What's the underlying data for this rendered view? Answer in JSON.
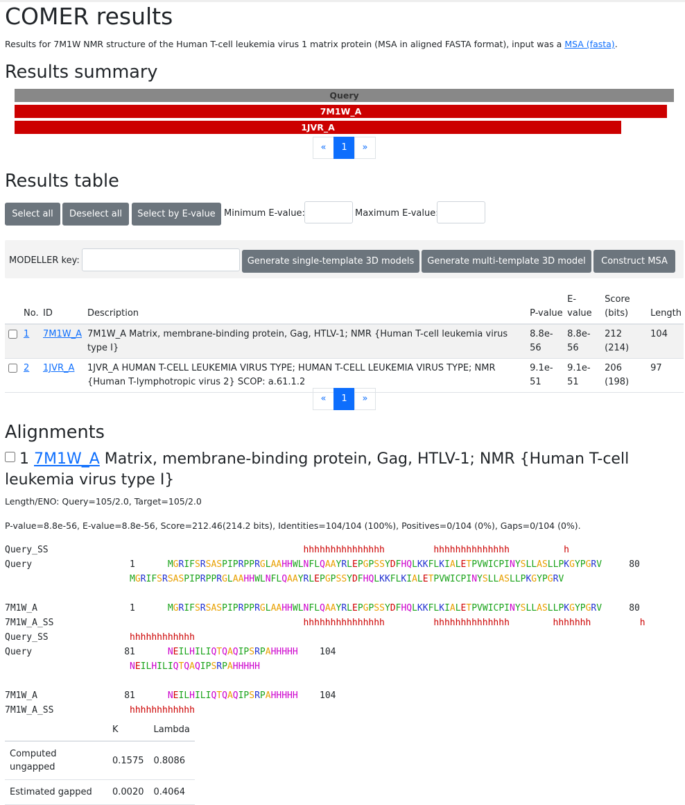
{
  "page_title": "COMER results",
  "intro": {
    "text": "Results for 7M1W NMR structure of the Human T-cell leukemia virus 1 matrix protein (MSA in aligned FASTA format), input was a ",
    "link": "MSA (fasta)",
    "suffix": "."
  },
  "summary": {
    "heading": "Results summary",
    "query_label": "Query",
    "hits": [
      {
        "label": "7M1W_A",
        "coverage": 0.99
      },
      {
        "label": "1JVR_A",
        "coverage": 0.92
      }
    ],
    "pager": {
      "prev": "«",
      "page": "1",
      "next": "»"
    }
  },
  "results_table": {
    "heading": "Results table",
    "select_all": "Select all",
    "deselect_all": "Deselect all",
    "select_by_evalue": "Select by E-value",
    "min_evalue_label": "Minimum E-value:",
    "max_evalue_label": "Maximum E-value:",
    "min_evalue_value": "",
    "max_evalue_value": "",
    "modeller_key_label": "MODELLER key:",
    "modeller_key_value": "",
    "gen_single": "Generate single-template 3D models",
    "gen_multi": "Generate multi-template 3D model",
    "construct_msa": "Construct MSA",
    "columns": {
      "no": "No.",
      "id": "ID",
      "description": "Description",
      "pvalue": "P-value",
      "evalue": "E-value",
      "score": "Score (bits)",
      "length": "Length"
    },
    "rows": [
      {
        "no": "1",
        "id": "7M1W_A",
        "description": "7M1W_A Matrix, membrane-binding protein, Gag, HTLV-1; NMR {Human T-cell leukemia virus type I}",
        "pvalue": "8.8e-56",
        "evalue": "8.8e-56",
        "score": "212 (214)",
        "length": "104"
      },
      {
        "no": "2",
        "id": "1JVR_A",
        "description": "1JVR_A HUMAN T-CELL LEUKEMIA VIRUS TYPE; HUMAN T-CELL LEUKEMIA VIRUS TYPE; NMR {Human T-lymphotropic virus 2} SCOP: a.61.1.2",
        "pvalue": "9.1e-51",
        "evalue": "9.1e-51",
        "score": "206 (198)",
        "length": "97"
      }
    ],
    "pager": {
      "prev": "«",
      "page": "1",
      "next": "»"
    }
  },
  "alignments": {
    "heading": "Alignments",
    "hit_no": "1",
    "hit_id": "7M1W_A",
    "hit_desc": "Matrix, membrane-binding protein, Gag, HTLV-1; NMR {Human T-cell leukemia virus type I}",
    "length_eno": "Length/ENO: Query=105/2.0, Target=105/2.0",
    "stats": "P-value=8.8e-56, E-value=8.8e-56, Score=212.46(214.2 bits), Identities=104/104 (100%), Positives=0/104 (0%), Gaps=0/104 (0%).",
    "block1": {
      "query_ss_label": "Query_SS",
      "query_ss": "                       hhhhhhhhhhhhhhh         hhhhhhhhhhhhhh          h",
      "query_label": "Query",
      "query_start": "1",
      "seq": "MGRIFSRSASPIPRPPRGLAAHHWLNFLQAAYRLEPGPSSYDFHQLKKFLKIALETPVWICPINYSLLASLLPKGYPGRV",
      "query_end": "80",
      "target_label": "7M1W_A",
      "target_start": "1",
      "target_end": "80",
      "target_ss_label": "7M1W_A_SS",
      "target_ss": "                       hhhhhhhhhhhhhhh         hhhhhhhhhhhhhh        hhhhhhh         h"
    },
    "block2": {
      "query_ss_label": "Query_SS",
      "query_ss": "hhhhhhhhhhhh",
      "query_label": "Query",
      "query_start": "81",
      "seq": "NEILHILIQTQAQIPSRPAHHHHH",
      "query_end": "104",
      "target_label": "7M1W_A",
      "target_start": "81",
      "target_end": "104",
      "target_ss_label": "7M1W_A_SS",
      "target_ss": "hhhhhhhhhhhh"
    }
  },
  "kl_table": {
    "col_k": "K",
    "col_lambda": "Lambda",
    "rows": [
      {
        "label": "Computed ungapped",
        "k": "0.1575",
        "lambda": "0.8086"
      },
      {
        "label": "Estimated gapped",
        "k": "0.0020",
        "lambda": "0.4064"
      }
    ]
  },
  "colors": {
    "hit_bar": "#cc0000",
    "query_bar": "#888888",
    "link": "#0d6efd",
    "button": "#6c757d",
    "ss": "#cc0000"
  }
}
